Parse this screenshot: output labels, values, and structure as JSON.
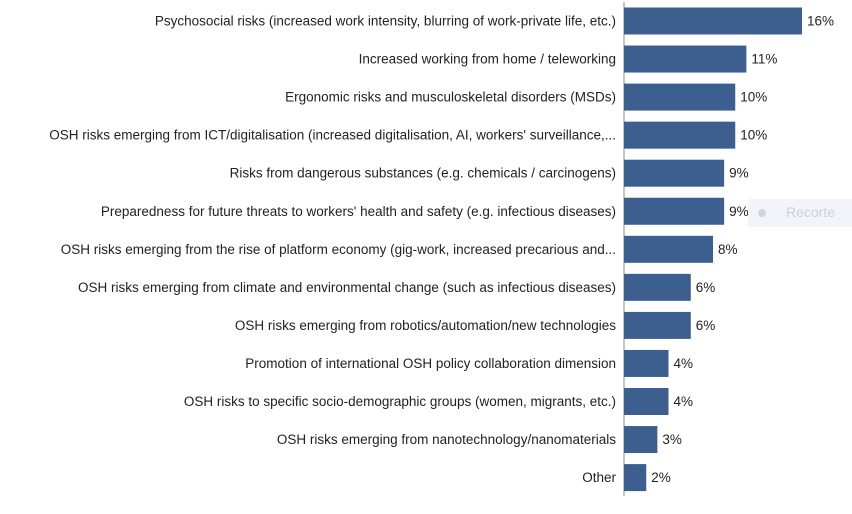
{
  "chart_data": {
    "type": "bar",
    "orientation": "horizontal",
    "title": "",
    "xlabel": "",
    "ylabel": "",
    "xlim": [
      0,
      16
    ],
    "grid": false,
    "legend": "none",
    "bar_color": "#3c5f8f",
    "categories": [
      "Psychosocial risks (increased work intensity, blurring of work-private life, etc.)",
      "Increased working from home / teleworking",
      "Ergonomic risks and musculoskeletal disorders (MSDs)",
      "OSH risks emerging from ICT/digitalisation (increased digitalisation, AI, workers' surveillance,...",
      "Risks from dangerous substances (e.g. chemicals / carcinogens)",
      "Preparedness for future threats to workers' health and safety (e.g. infectious diseases)",
      "OSH risks emerging from the rise of platform economy (gig-work, increased precarious and...",
      "OSH risks emerging from climate and environmental change (such as infectious diseases)",
      "OSH risks emerging from robotics/automation/new technologies",
      "Promotion of international OSH policy collaboration dimension",
      "OSH risks to specific socio-demographic groups (women, migrants, etc.)",
      "OSH risks emerging from nanotechnology/nanomaterials",
      "Other"
    ],
    "values": [
      16,
      11,
      10,
      10,
      9,
      9,
      8,
      6,
      6,
      4,
      4,
      3,
      2
    ],
    "data_labels": [
      "16%",
      "11%",
      "10%",
      "10%",
      "9%",
      "9%",
      "8%",
      "6%",
      "6%",
      "4%",
      "4%",
      "3%",
      "2%"
    ]
  },
  "overlay": {
    "tooltip_text": "Recorte"
  }
}
